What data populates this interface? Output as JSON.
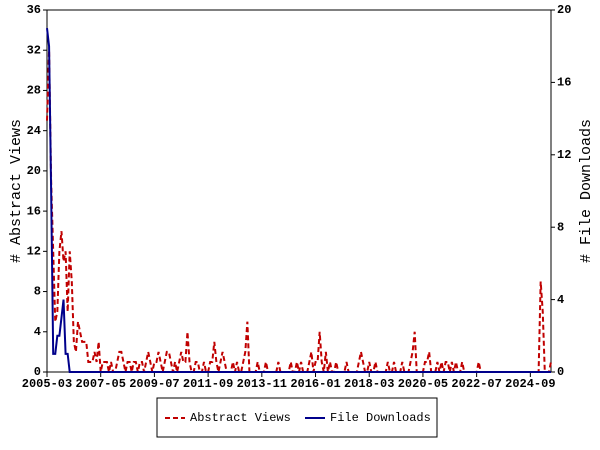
{
  "chart_data": {
    "type": "line",
    "y_label": "# Abstract Views",
    "y2_label": "# File Downloads",
    "x": [
      "2005-03",
      "2005-04",
      "2005-05",
      "2005-06",
      "2005-07",
      "2005-08",
      "2005-09",
      "2005-10",
      "2005-11",
      "2005-12",
      "2006-01",
      "2006-02",
      "2006-03",
      "2006-04",
      "2006-05",
      "2006-06",
      "2006-07",
      "2006-08",
      "2006-09",
      "2006-10",
      "2006-11",
      "2006-12",
      "2007-01",
      "2007-02",
      "2007-03",
      "2007-04",
      "2007-05",
      "2007-06",
      "2007-07",
      "2007-08",
      "2007-09",
      "2007-10",
      "2007-11",
      "2007-12",
      "2008-01",
      "2008-02",
      "2008-03",
      "2008-04",
      "2008-05",
      "2008-06",
      "2008-07",
      "2008-08",
      "2008-09",
      "2008-10",
      "2008-11",
      "2008-12",
      "2009-01",
      "2009-02",
      "2009-03",
      "2009-04",
      "2009-05",
      "2009-06",
      "2009-07",
      "2009-08",
      "2009-09",
      "2009-10",
      "2009-11",
      "2009-12",
      "2010-01",
      "2010-02",
      "2010-03",
      "2010-04",
      "2010-05",
      "2010-06",
      "2010-07",
      "2010-08",
      "2010-09",
      "2010-10",
      "2010-11",
      "2010-12",
      "2011-01",
      "2011-02",
      "2011-03",
      "2011-04",
      "2011-05",
      "2011-06",
      "2011-07",
      "2011-08",
      "2011-09",
      "2011-10",
      "2011-11",
      "2011-12",
      "2012-01",
      "2012-02",
      "2012-03",
      "2012-04",
      "2012-05",
      "2012-06",
      "2012-07",
      "2012-08",
      "2012-09",
      "2012-10",
      "2012-11",
      "2012-12",
      "2013-01",
      "2013-02",
      "2013-03",
      "2013-04",
      "2013-05",
      "2013-06",
      "2013-07",
      "2013-08",
      "2013-09",
      "2013-10",
      "2013-11",
      "2013-12",
      "2014-01",
      "2014-02",
      "2014-03",
      "2014-04",
      "2014-05",
      "2014-06",
      "2014-07",
      "2014-08",
      "2014-09",
      "2014-10",
      "2014-11",
      "2014-12",
      "2015-01",
      "2015-02",
      "2015-03",
      "2015-04",
      "2015-05",
      "2015-06",
      "2015-07",
      "2015-08",
      "2015-09",
      "2015-10",
      "2015-11",
      "2015-12",
      "2016-01",
      "2016-02",
      "2016-03",
      "2016-04",
      "2016-05",
      "2016-06",
      "2016-07",
      "2016-08",
      "2016-09",
      "2016-10",
      "2016-11",
      "2016-12",
      "2017-01",
      "2017-02",
      "2017-03",
      "2017-04",
      "2017-05",
      "2017-06",
      "2017-07",
      "2017-08",
      "2017-09",
      "2017-10",
      "2017-11",
      "2017-12",
      "2018-01",
      "2018-02",
      "2018-03",
      "2018-04",
      "2018-05",
      "2018-06",
      "2018-07",
      "2018-08",
      "2018-09",
      "2018-10",
      "2018-11",
      "2018-12",
      "2019-01",
      "2019-02",
      "2019-03",
      "2019-04",
      "2019-05",
      "2019-06",
      "2019-07",
      "2019-08",
      "2019-09",
      "2019-10",
      "2019-11",
      "2019-12",
      "2020-01",
      "2020-02",
      "2020-03",
      "2020-04",
      "2020-05",
      "2020-06",
      "2020-07",
      "2020-08",
      "2020-09",
      "2020-10",
      "2020-11",
      "2020-12",
      "2021-01",
      "2021-02",
      "2021-03",
      "2021-04",
      "2021-05",
      "2021-06",
      "2021-07",
      "2021-08",
      "2021-09",
      "2021-10",
      "2021-11",
      "2021-12",
      "2022-01",
      "2022-02",
      "2022-03",
      "2022-04",
      "2022-05",
      "2022-06",
      "2022-07",
      "2022-08",
      "2022-09",
      "2022-10",
      "2022-11",
      "2022-12",
      "2023-01",
      "2023-02",
      "2023-03",
      "2023-04",
      "2023-05",
      "2023-06",
      "2023-07",
      "2023-08",
      "2023-09",
      "2023-10",
      "2023-11",
      "2023-12",
      "2024-01",
      "2024-02",
      "2024-03",
      "2024-04",
      "2024-05",
      "2024-06",
      "2024-07",
      "2024-08",
      "2024-09",
      "2024-10",
      "2024-11",
      "2024-12",
      "2025-01",
      "2025-02",
      "2025-03",
      "2025-04",
      "2025-05",
      "2025-06",
      "2025-07"
    ],
    "series": [
      {
        "name": "Abstract Views",
        "color": "#c00000",
        "dash": true,
        "values": [
          25,
          32,
          19,
          12,
          5,
          6,
          12,
          14,
          11,
          12,
          6,
          12,
          9,
          3,
          2,
          5,
          4,
          3,
          3,
          3,
          1,
          1,
          1,
          2,
          1,
          3,
          0,
          1,
          1,
          1,
          0,
          1,
          0,
          0,
          1,
          2,
          2,
          1,
          0,
          1,
          1,
          0,
          1,
          1,
          0,
          1,
          1,
          0,
          1,
          2,
          1,
          0,
          1,
          1,
          2,
          1,
          0,
          1,
          2,
          2,
          1,
          0,
          1,
          0,
          1,
          2,
          1,
          1,
          4,
          1,
          0,
          0,
          1,
          1,
          0,
          0,
          1,
          0,
          0,
          1,
          1,
          3,
          1,
          0,
          1,
          2,
          1,
          0,
          0,
          0,
          1,
          0,
          1,
          0,
          0,
          1,
          2,
          5,
          0,
          0,
          0,
          0,
          1,
          0,
          0,
          0,
          1,
          0,
          0,
          0,
          0,
          0,
          1,
          0,
          0,
          0,
          0,
          0,
          1,
          0,
          0,
          1,
          0,
          1,
          0,
          0,
          0,
          1,
          2,
          0,
          1,
          1,
          4,
          1,
          0,
          2,
          0,
          1,
          0,
          0,
          1,
          0,
          0,
          0,
          0,
          1,
          0,
          0,
          0,
          0,
          0,
          1,
          2,
          1,
          0,
          0,
          1,
          0,
          0,
          1,
          0,
          0,
          0,
          0,
          0,
          1,
          0,
          0,
          1,
          0,
          0,
          0,
          1,
          0,
          0,
          0,
          1,
          2,
          4,
          0,
          0,
          0,
          0,
          1,
          1,
          2,
          0,
          0,
          0,
          1,
          0,
          1,
          0,
          1,
          1,
          0,
          1,
          0,
          1,
          0,
          0,
          1,
          0,
          0,
          0,
          0,
          0,
          0,
          0,
          1,
          0,
          0,
          0,
          0,
          0,
          0,
          0,
          0,
          0,
          0,
          0,
          0,
          0,
          0,
          0,
          0,
          0,
          0,
          0,
          0,
          0,
          0,
          0,
          0,
          0,
          0,
          0,
          0,
          0,
          9,
          6,
          0,
          0,
          0,
          1
        ]
      },
      {
        "name": "File Downloads",
        "color": "#00008b",
        "dash": false,
        "axis": "y2",
        "values": [
          19,
          18,
          10,
          1,
          1,
          2,
          2,
          3,
          4,
          1,
          1,
          0,
          0,
          0,
          0,
          0,
          0,
          0,
          0,
          0,
          0,
          0,
          0,
          0,
          0,
          0,
          0,
          0,
          0,
          0,
          0,
          0,
          0,
          0,
          0,
          0,
          0,
          0,
          0,
          0,
          0,
          0,
          0,
          0,
          0,
          0,
          0,
          0,
          0,
          0,
          0,
          0,
          0,
          0,
          0,
          0,
          0,
          0,
          0,
          0,
          0,
          0,
          0,
          0,
          0,
          0,
          0,
          0,
          0,
          0,
          0,
          0,
          0,
          0,
          0,
          0,
          0,
          0,
          0,
          0,
          0,
          0,
          0,
          0,
          0,
          0,
          0,
          0,
          0,
          0,
          0,
          0,
          0,
          0,
          0,
          0,
          0,
          0,
          0,
          0,
          0,
          0,
          0,
          0,
          0,
          0,
          0,
          0,
          0,
          0,
          0,
          0,
          0,
          0,
          0,
          0,
          0,
          0,
          0,
          0,
          0,
          0,
          0,
          0,
          0,
          0,
          0,
          0,
          0,
          0,
          0,
          0,
          0,
          0,
          0,
          0,
          0,
          0,
          0,
          0,
          0,
          0,
          0,
          0,
          0,
          0,
          0,
          0,
          0,
          0,
          0,
          0,
          0,
          0,
          0,
          0,
          0,
          0,
          0,
          0,
          0,
          0,
          0,
          0,
          0,
          0,
          0,
          0,
          0,
          0,
          0,
          0,
          0,
          0,
          0,
          0,
          0,
          0,
          0,
          0,
          0,
          0,
          0,
          0,
          0,
          0,
          0,
          0,
          0,
          0,
          0,
          0,
          0,
          0,
          0,
          0,
          0,
          0,
          0,
          0,
          0,
          0,
          0,
          0,
          0,
          0,
          0,
          0,
          0,
          0,
          0,
          0,
          0,
          0,
          0,
          0,
          0,
          0,
          0,
          0,
          0,
          0,
          0,
          0,
          0,
          0,
          0,
          0,
          0,
          0,
          0,
          0,
          0,
          0,
          0,
          0,
          0,
          0,
          0,
          0,
          0,
          0,
          0,
          0,
          0
        ]
      }
    ],
    "xticks": [
      "2005-03",
      "2007-05",
      "2009-07",
      "2011-09",
      "2013-11",
      "2016-01",
      "2018-03",
      "2020-05",
      "2022-07",
      "2024-09"
    ],
    "ylim": [
      0,
      36
    ],
    "yticks": [
      0,
      4,
      8,
      12,
      16,
      20,
      24,
      28,
      32,
      36
    ],
    "y2lim": [
      0,
      20
    ],
    "y2ticks": [
      0,
      4,
      8,
      12,
      16,
      20
    ],
    "legend": "bottom"
  }
}
